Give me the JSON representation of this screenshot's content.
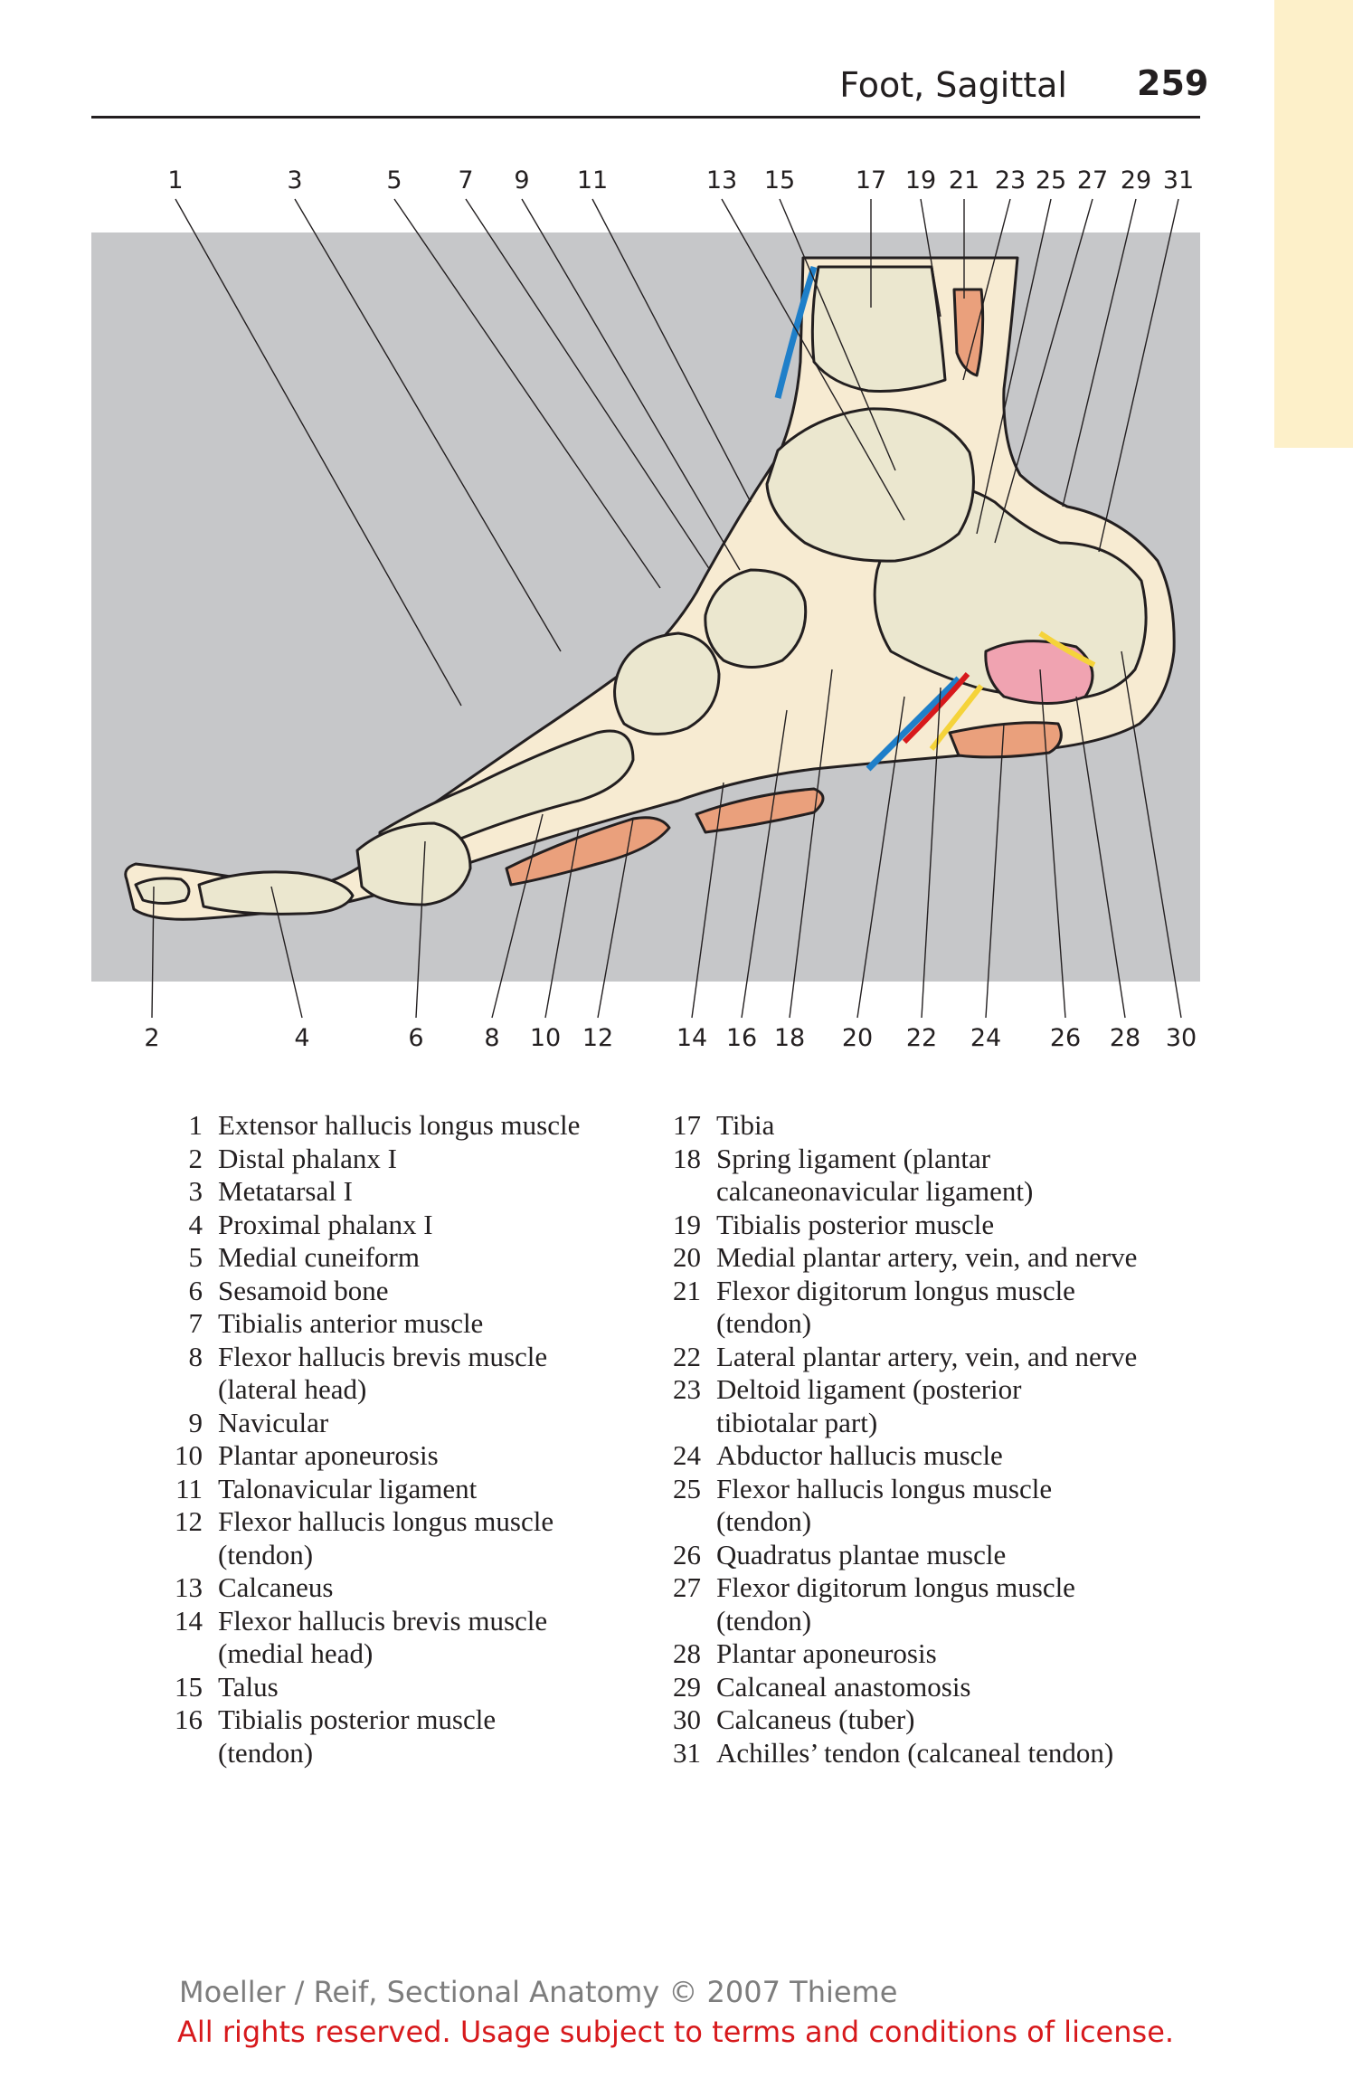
{
  "header": {
    "title": "Foot, Sagittal",
    "page": "259"
  },
  "figure": {
    "top_labels": [
      "1",
      "3",
      "5",
      "7",
      "9",
      "11",
      "13",
      "15",
      "17",
      "19",
      "21",
      "23",
      "25",
      "27",
      "29",
      "31"
    ],
    "bottom_labels": [
      "2",
      "4",
      "6",
      "8",
      "10",
      "12",
      "14",
      "16",
      "18",
      "20",
      "22",
      "24",
      "26",
      "28",
      "30"
    ]
  },
  "legend": {
    "left": [
      {
        "n": "1",
        "t": "Extensor hallucis longus muscle"
      },
      {
        "n": "2",
        "t": "Distal phalanx I"
      },
      {
        "n": "3",
        "t": "Metatarsal I"
      },
      {
        "n": "4",
        "t": "Proximal phalanx I"
      },
      {
        "n": "5",
        "t": "Medial cuneiform"
      },
      {
        "n": "6",
        "t": "Sesamoid bone"
      },
      {
        "n": "7",
        "t": "Tibialis anterior muscle"
      },
      {
        "n": "8",
        "t": "Flexor hallucis brevis muscle\n(lateral head)"
      },
      {
        "n": "9",
        "t": "Navicular"
      },
      {
        "n": "10",
        "t": "Plantar aponeurosis"
      },
      {
        "n": "11",
        "t": "Talonavicular ligament"
      },
      {
        "n": "12",
        "t": "Flexor hallucis longus muscle\n(tendon)"
      },
      {
        "n": "13",
        "t": "Calcaneus"
      },
      {
        "n": "14",
        "t": "Flexor hallucis brevis muscle\n(medial head)"
      },
      {
        "n": "15",
        "t": "Talus"
      },
      {
        "n": "16",
        "t": "Tibialis posterior muscle\n(tendon)"
      }
    ],
    "right": [
      {
        "n": "17",
        "t": "Tibia"
      },
      {
        "n": "18",
        "t": "Spring ligament (plantar\ncalcaneonavicular ligament)"
      },
      {
        "n": "19",
        "t": "Tibialis posterior muscle"
      },
      {
        "n": "20",
        "t": "Medial plantar artery, vein, and nerve"
      },
      {
        "n": "21",
        "t": "Flexor digitorum longus muscle\n(tendon)"
      },
      {
        "n": "22",
        "t": "Lateral plantar artery, vein, and nerve"
      },
      {
        "n": "23",
        "t": "Deltoid ligament (posterior\ntibiotalar part)"
      },
      {
        "n": "24",
        "t": "Abductor hallucis muscle"
      },
      {
        "n": "25",
        "t": "Flexor hallucis longus muscle\n(tendon)"
      },
      {
        "n": "26",
        "t": "Quadratus plantae muscle"
      },
      {
        "n": "27",
        "t": "Flexor digitorum longus muscle\n(tendon)"
      },
      {
        "n": "28",
        "t": "Plantar aponeurosis"
      },
      {
        "n": "29",
        "t": "Calcaneal anastomosis"
      },
      {
        "n": "30",
        "t": "Calcaneus (tuber)"
      },
      {
        "n": "31",
        "t": "Achilles’ tendon (calcaneal tendon)"
      }
    ]
  },
  "footer": {
    "copyright": "Moeller / Reif, Sectional Anatomy © 2007 Thieme",
    "rights": "All rights reserved. Usage subject to terms and conditions of license."
  },
  "colors": {
    "background_panel": "#c6c7c9",
    "bone": "#ebe7cf",
    "soft_tissue": "#f7ebd2",
    "muscle": "#eaa07c",
    "artery": "#d7191c",
    "vein": "#1f7fc9",
    "nerve": "#f5d33a",
    "side_tab": "#fdf0c9"
  }
}
